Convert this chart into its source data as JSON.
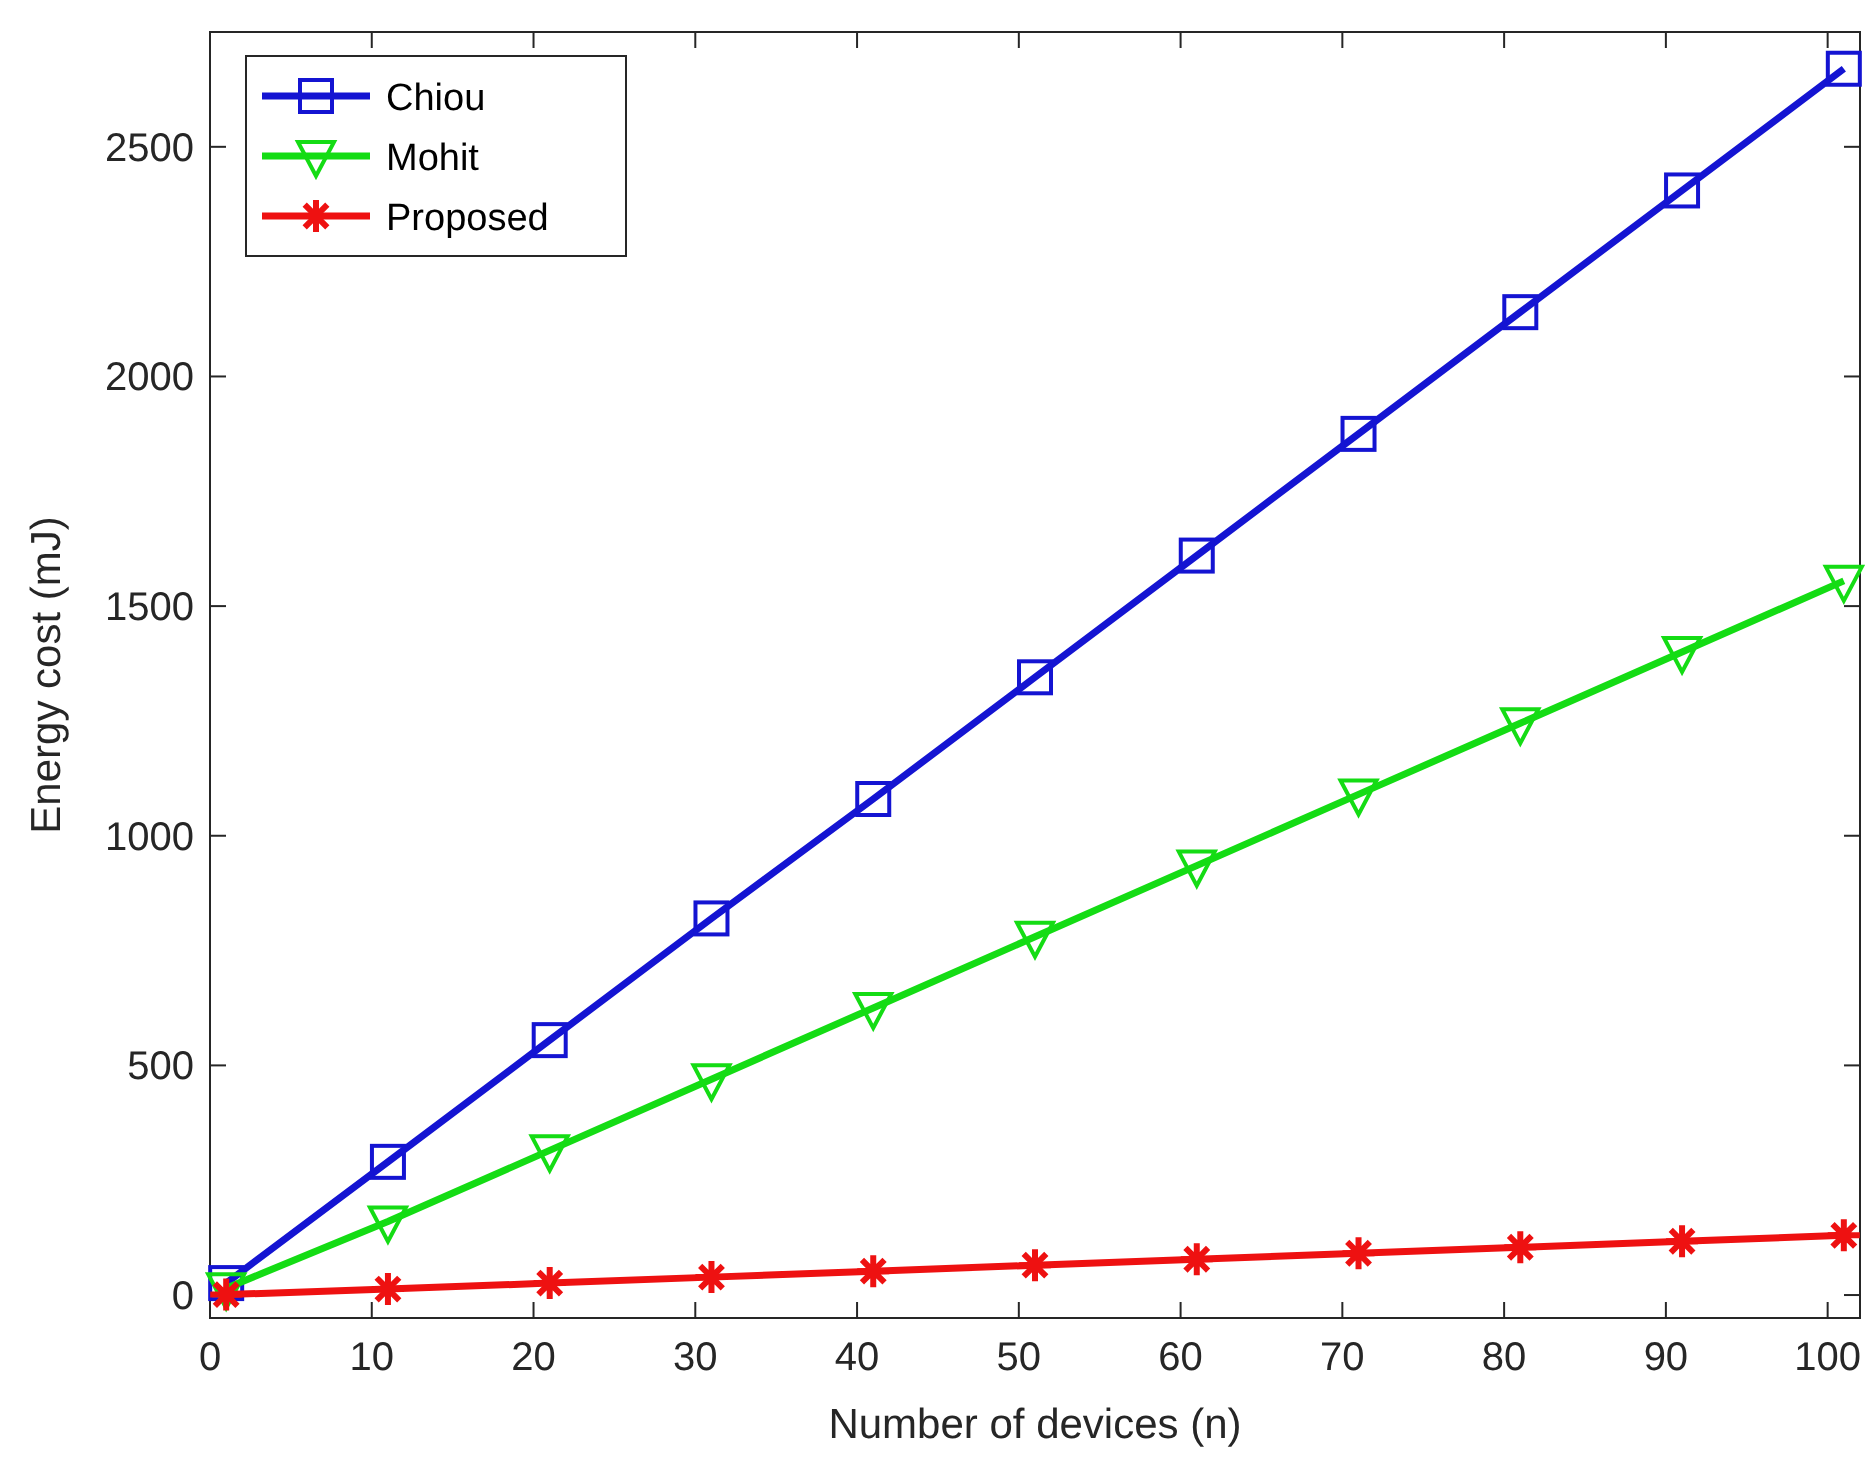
{
  "chart_data": {
    "type": "line",
    "xlabel": "Number of devices (n)",
    "ylabel": "Energy cost (mJ)",
    "x": [
      1,
      11,
      21,
      31,
      41,
      51,
      61,
      71,
      81,
      91,
      101
    ],
    "series": [
      {
        "name": "Chiou",
        "color": "#1414d2",
        "marker": "square",
        "values": [
          26,
          290,
          555,
          820,
          1080,
          1345,
          1610,
          1875,
          2140,
          2405,
          2670
        ]
      },
      {
        "name": "Mohit",
        "color": "#14dc14",
        "marker": "triangle",
        "values": [
          15,
          160,
          315,
          470,
          625,
          780,
          935,
          1090,
          1245,
          1400,
          1555
        ]
      },
      {
        "name": "Proposed",
        "color": "#ee1111",
        "marker": "cross",
        "values": [
          1,
          13,
          26,
          39,
          52,
          65,
          78,
          91,
          104,
          117,
          130
        ]
      }
    ],
    "xlim": [
      0,
      102
    ],
    "ylim": [
      -50,
      2750
    ],
    "xticks": [
      0,
      10,
      20,
      30,
      40,
      50,
      60,
      70,
      80,
      90,
      100
    ],
    "yticks": [
      0,
      500,
      1000,
      1500,
      2000,
      2500
    ],
    "grid": false,
    "legend": "top left",
    "line_style": "solid"
  }
}
